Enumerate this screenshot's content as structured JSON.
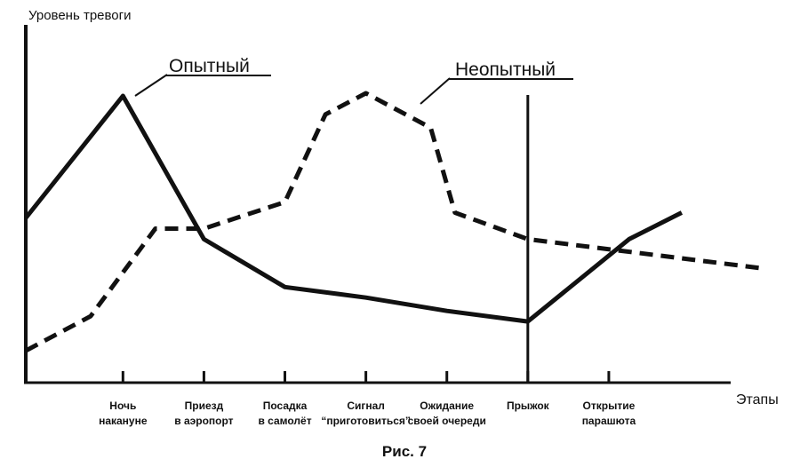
{
  "chart_data": {
    "type": "line",
    "ylabel": "Уровень тревоги",
    "xlabel": "Этапы",
    "caption": "Рис. 7",
    "categories": [
      [
        "Ночь",
        "накануне"
      ],
      [
        "Приезд",
        "в аэропорт"
      ],
      [
        "Посадка",
        "в самолёт"
      ],
      [
        "Сигнал",
        "“приготовиться”"
      ],
      [
        "Ожидание",
        "своей очереди"
      ],
      [
        "Прыжок"
      ],
      [
        "Открытие",
        "парашюта"
      ]
    ],
    "jump_marker_x": 5,
    "ylim": [
      0,
      100
    ],
    "xlim": [
      -1.2,
      7.9
    ],
    "series": [
      {
        "name": "Опытный",
        "style": "solid",
        "color": "#111111",
        "x": [
          -1.2,
          0,
          1,
          2,
          3,
          4,
          5,
          6.25,
          6.9
        ],
        "y": [
          53,
          99,
          45,
          27,
          23,
          18,
          14,
          45,
          55
        ]
      },
      {
        "name": "Неопытный",
        "style": "dashed",
        "color": "#111111",
        "x": [
          -1.2,
          -0.4,
          0.4,
          1,
          2,
          2.5,
          3,
          3.8,
          4.1,
          5,
          7.9
        ],
        "y": [
          3,
          16,
          49,
          49,
          59,
          92,
          100,
          87,
          55,
          45,
          34
        ]
      }
    ]
  }
}
